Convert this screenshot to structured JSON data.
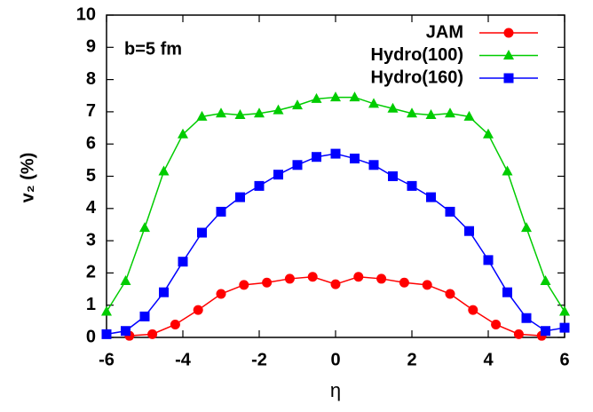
{
  "chart_data": {
    "type": "line",
    "x_label": "η",
    "y_label": "v₂ (%)",
    "annotation": "b=5 fm",
    "xlim": [
      -6,
      6
    ],
    "xticks": [
      -6,
      -4,
      -2,
      0,
      2,
      4,
      6
    ],
    "ylim": [
      0,
      10
    ],
    "yticks": [
      0,
      1,
      2,
      3,
      4,
      5,
      6,
      7,
      8,
      9,
      10
    ],
    "legend": "upper-right",
    "series": [
      {
        "name": "JAM",
        "color": "#ff0000",
        "marker": "circle",
        "x": [
          -5.4,
          -4.8,
          -4.2,
          -3.6,
          -3.0,
          -2.4,
          -1.8,
          -1.2,
          -0.6,
          0,
          0.6,
          1.2,
          1.8,
          2.4,
          3.0,
          3.6,
          4.2,
          4.8,
          5.4
        ],
        "values": [
          0.05,
          0.1,
          0.4,
          0.85,
          1.35,
          1.63,
          1.7,
          1.82,
          1.88,
          1.65,
          1.88,
          1.82,
          1.7,
          1.63,
          1.35,
          0.85,
          0.4,
          0.1,
          0.05
        ]
      },
      {
        "name": "Hydro(100)",
        "color": "#00cc00",
        "marker": "triangle",
        "x": [
          -6,
          -5.5,
          -5,
          -4.5,
          -4,
          -3.5,
          -3,
          -2.5,
          -2,
          -1.5,
          -1,
          -0.5,
          0,
          0.5,
          1,
          1.5,
          2,
          2.5,
          3,
          3.5,
          4,
          4.5,
          5,
          5.5,
          6
        ],
        "values": [
          0.8,
          1.75,
          3.4,
          5.15,
          6.3,
          6.85,
          6.95,
          6.9,
          6.95,
          7.05,
          7.2,
          7.4,
          7.45,
          7.45,
          7.25,
          7.1,
          6.95,
          6.9,
          6.95,
          6.85,
          6.3,
          5.15,
          3.4,
          1.75,
          0.8
        ]
      },
      {
        "name": "Hydro(160)",
        "color": "#0000ff",
        "marker": "square",
        "x": [
          -6,
          -5.5,
          -5,
          -4.5,
          -4,
          -3.5,
          -3,
          -2.5,
          -2,
          -1.5,
          -1,
          -0.5,
          0,
          0.5,
          1,
          1.5,
          2,
          2.5,
          3,
          3.5,
          4,
          4.5,
          5,
          5.5,
          6
        ],
        "values": [
          0.1,
          0.2,
          0.65,
          1.4,
          2.35,
          3.25,
          3.9,
          4.35,
          4.7,
          5.05,
          5.35,
          5.6,
          5.7,
          5.55,
          5.35,
          5.0,
          4.7,
          4.35,
          3.9,
          3.3,
          2.4,
          1.4,
          0.6,
          0.2,
          0.3
        ]
      }
    ]
  }
}
